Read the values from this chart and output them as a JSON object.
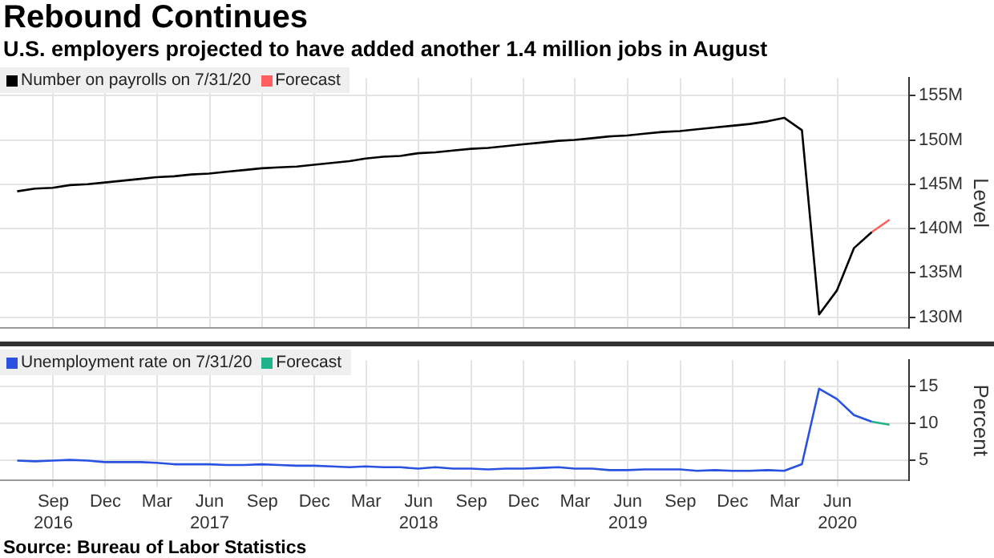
{
  "chart_data": [
    {
      "type": "line",
      "title": "Rebound Continues",
      "subtitle": "U.S. employers projected to have added another 1.4 million jobs in August",
      "ylabel": "Level",
      "legend": "top left",
      "grid": true,
      "tick_labels": "y",
      "marker": "none",
      "line_style": "solid",
      "xlim": [
        "2016-05-31",
        "2020-10-04"
      ],
      "xticks": [
        {
          "value": "2016-09-01",
          "label": null
        },
        {
          "value": "2016-12-01",
          "label": null
        },
        {
          "value": "2017-03-01",
          "label": null
        },
        {
          "value": "2017-06-01",
          "label": null
        },
        {
          "value": "2017-09-01",
          "label": null
        },
        {
          "value": "2017-12-01",
          "label": null
        },
        {
          "value": "2018-03-01",
          "label": null
        },
        {
          "value": "2018-06-01",
          "label": null
        },
        {
          "value": "2018-09-01",
          "label": null
        },
        {
          "value": "2018-12-01",
          "label": null
        },
        {
          "value": "2019-03-01",
          "label": null
        },
        {
          "value": "2019-06-01",
          "label": null
        },
        {
          "value": "2019-09-01",
          "label": null
        },
        {
          "value": "2019-12-01",
          "label": null
        },
        {
          "value": "2020-03-01",
          "label": null
        },
        {
          "value": "2020-06-01",
          "label": null
        }
      ],
      "ylim": [
        128.8,
        157
      ],
      "yticks": [
        {
          "value": 130,
          "label": "130M"
        },
        {
          "value": 135,
          "label": "135M"
        },
        {
          "value": 140,
          "label": "140M"
        },
        {
          "value": 145,
          "label": "145M"
        },
        {
          "value": 150,
          "label": "150M"
        },
        {
          "value": 155,
          "label": "155M"
        }
      ],
      "series": [
        {
          "name": "Number on payrolls on 7/31/20",
          "color": "#000000",
          "x": [
            "2016-06-30",
            "2016-07-31",
            "2016-08-31",
            "2016-09-30",
            "2016-10-31",
            "2016-11-30",
            "2016-12-31",
            "2017-01-31",
            "2017-02-28",
            "2017-03-31",
            "2017-04-30",
            "2017-05-31",
            "2017-06-30",
            "2017-07-31",
            "2017-08-31",
            "2017-09-30",
            "2017-10-31",
            "2017-11-30",
            "2017-12-31",
            "2018-01-31",
            "2018-02-28",
            "2018-03-31",
            "2018-04-30",
            "2018-05-31",
            "2018-06-30",
            "2018-07-31",
            "2018-08-31",
            "2018-09-30",
            "2018-10-31",
            "2018-11-30",
            "2018-12-31",
            "2019-01-31",
            "2019-02-28",
            "2019-03-31",
            "2019-04-30",
            "2019-05-31",
            "2019-06-30",
            "2019-07-31",
            "2019-08-31",
            "2019-09-30",
            "2019-10-31",
            "2019-11-30",
            "2019-12-31",
            "2020-01-31",
            "2020-02-29",
            "2020-03-31",
            "2020-04-30",
            "2020-05-31",
            "2020-06-30",
            "2020-07-31"
          ],
          "values": [
            144.2,
            144.5,
            144.6,
            144.9,
            145.0,
            145.2,
            145.4,
            145.6,
            145.8,
            145.9,
            146.1,
            146.2,
            146.4,
            146.6,
            146.8,
            146.9,
            147.0,
            147.2,
            147.4,
            147.6,
            147.9,
            148.1,
            148.2,
            148.5,
            148.6,
            148.8,
            149.0,
            149.1,
            149.3,
            149.5,
            149.7,
            149.9,
            150.0,
            150.2,
            150.4,
            150.5,
            150.7,
            150.9,
            151.0,
            151.2,
            151.4,
            151.6,
            151.8,
            152.1,
            152.5,
            151.1,
            130.3,
            133.0,
            137.8,
            139.6
          ]
        },
        {
          "name": "Forecast",
          "color": "#ff5f5f",
          "x": [
            "2020-07-31",
            "2020-08-31"
          ],
          "values": [
            139.6,
            141.0
          ]
        }
      ]
    },
    {
      "type": "line",
      "ylabel": "Percent",
      "legend": "top left",
      "grid": true,
      "marker": "none",
      "line_style": "solid",
      "annotations": [
        "Source: Bureau of Labor Statistics"
      ],
      "xlim": [
        "2016-05-31",
        "2020-10-04"
      ],
      "xticks": [
        {
          "value": "2016-09-01",
          "label": "Sep\n2016"
        },
        {
          "value": "2016-12-01",
          "label": "Dec"
        },
        {
          "value": "2017-03-01",
          "label": "Mar"
        },
        {
          "value": "2017-06-01",
          "label": "Jun\n2017"
        },
        {
          "value": "2017-09-01",
          "label": "Sep"
        },
        {
          "value": "2017-12-01",
          "label": "Dec"
        },
        {
          "value": "2018-03-01",
          "label": "Mar"
        },
        {
          "value": "2018-06-01",
          "label": "Jun\n2018"
        },
        {
          "value": "2018-09-01",
          "label": "Sep"
        },
        {
          "value": "2018-12-01",
          "label": "Dec"
        },
        {
          "value": "2019-03-01",
          "label": "Mar"
        },
        {
          "value": "2019-06-01",
          "label": "Jun\n2019"
        },
        {
          "value": "2019-09-01",
          "label": "Sep"
        },
        {
          "value": "2019-12-01",
          "label": "Dec"
        },
        {
          "value": "2020-03-01",
          "label": "Mar"
        },
        {
          "value": "2020-06-01",
          "label": "Jun\n2020"
        }
      ],
      "ylim": [
        2.2,
        18.6
      ],
      "yticks": [
        5,
        10,
        15
      ],
      "series": [
        {
          "name": "Unemployment rate on 7/31/20",
          "color": "#2a52e0",
          "x": [
            "2016-06-30",
            "2016-07-31",
            "2016-08-31",
            "2016-09-30",
            "2016-10-31",
            "2016-11-30",
            "2016-12-31",
            "2017-01-31",
            "2017-02-28",
            "2017-03-31",
            "2017-04-30",
            "2017-05-31",
            "2017-06-30",
            "2017-07-31",
            "2017-08-31",
            "2017-09-30",
            "2017-10-31",
            "2017-11-30",
            "2017-12-31",
            "2018-01-31",
            "2018-02-28",
            "2018-03-31",
            "2018-04-30",
            "2018-05-31",
            "2018-06-30",
            "2018-07-31",
            "2018-08-31",
            "2018-09-30",
            "2018-10-31",
            "2018-11-30",
            "2018-12-31",
            "2019-01-31",
            "2019-02-28",
            "2019-03-31",
            "2019-04-30",
            "2019-05-31",
            "2019-06-30",
            "2019-07-31",
            "2019-08-31",
            "2019-09-30",
            "2019-10-31",
            "2019-11-30",
            "2019-12-31",
            "2020-01-31",
            "2020-02-29",
            "2020-03-31",
            "2020-04-30",
            "2020-05-31",
            "2020-06-30",
            "2020-07-31"
          ],
          "values": [
            4.9,
            4.8,
            4.9,
            5.0,
            4.9,
            4.7,
            4.7,
            4.7,
            4.6,
            4.4,
            4.4,
            4.4,
            4.3,
            4.3,
            4.4,
            4.3,
            4.2,
            4.2,
            4.1,
            4.0,
            4.1,
            4.0,
            4.0,
            3.8,
            4.0,
            3.8,
            3.8,
            3.7,
            3.8,
            3.8,
            3.9,
            4.0,
            3.8,
            3.8,
            3.6,
            3.6,
            3.7,
            3.7,
            3.7,
            3.5,
            3.6,
            3.5,
            3.5,
            3.6,
            3.5,
            4.4,
            14.7,
            13.3,
            11.1,
            10.2
          ]
        },
        {
          "name": "Forecast",
          "color": "#1fb38a",
          "x": [
            "2020-07-31",
            "2020-08-31"
          ],
          "values": [
            10.2,
            9.8
          ]
        }
      ]
    }
  ]
}
